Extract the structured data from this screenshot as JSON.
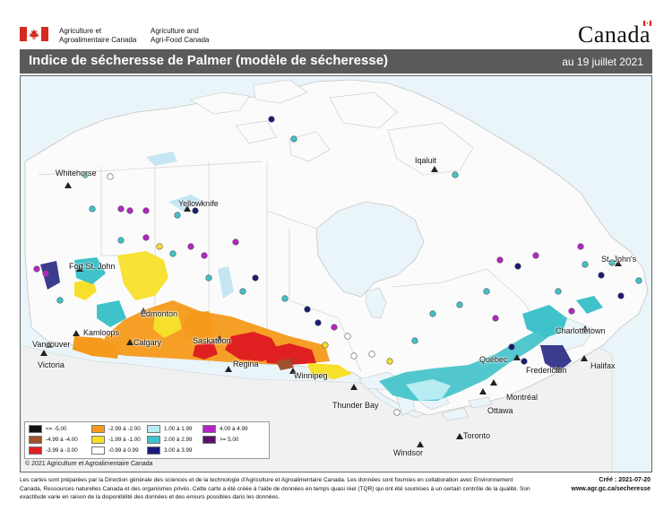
{
  "header": {
    "dept_fr": [
      "Agriculture et",
      "Agroalimentaire Canada"
    ],
    "dept_en": [
      "Agriculture and",
      "Agri-Food Canada"
    ],
    "wordmark": "Canada"
  },
  "title_bar": {
    "title": "Indice de sécheresse de Palmer (modèle de sécheresse)",
    "date": "au 19 juillet 2021"
  },
  "colors": {
    "land": "#fbfbfb",
    "water": "#eaf5fa",
    "us_land": "#f1f1f1",
    "title_bar": "#5a5a5a"
  },
  "places": [
    {
      "name": "Whitehorse",
      "id": "whitehorse"
    },
    {
      "name": "Yellowknife",
      "id": "yellowknife"
    },
    {
      "name": "Iqaluit",
      "id": "iqaluit"
    },
    {
      "name": "Fort St. John",
      "id": "fort-st-john"
    },
    {
      "name": "Edmonton",
      "id": "edmonton"
    },
    {
      "name": "Kamloops",
      "id": "kamloops"
    },
    {
      "name": "Calgary",
      "id": "calgary"
    },
    {
      "name": "Saskatoon",
      "id": "saskatoon"
    },
    {
      "name": "Regina",
      "id": "regina"
    },
    {
      "name": "Winnipeg",
      "id": "winnipeg"
    },
    {
      "name": "Vancouver",
      "id": "vancouver"
    },
    {
      "name": "Victoria",
      "id": "victoria"
    },
    {
      "name": "Thunder Bay",
      "id": "thunder-bay"
    },
    {
      "name": "St. John's",
      "id": "st-johns"
    },
    {
      "name": "Charlottetown",
      "id": "charlottetown"
    },
    {
      "name": "Québec",
      "id": "quebec"
    },
    {
      "name": "Fredericton",
      "id": "fredericton"
    },
    {
      "name": "Halifax",
      "id": "halifax"
    },
    {
      "name": "Montréal",
      "id": "montreal"
    },
    {
      "name": "Ottawa",
      "id": "ottawa"
    },
    {
      "name": "Toronto",
      "id": "toronto"
    },
    {
      "name": "Windsor",
      "id": "windsor"
    }
  ],
  "legend": [
    {
      "label": "<= -5.00",
      "color": "#111111"
    },
    {
      "label": "-4.99 à -4.00",
      "color": "#a0522d"
    },
    {
      "label": "-3.99 à -3.00",
      "color": "#e02020"
    },
    {
      "label": "-2.99 à -2.00",
      "color": "#f59a1b"
    },
    {
      "label": "-1.99 à -1.00",
      "color": "#f7e02a"
    },
    {
      "label": "-0.99 à 0.99",
      "color": "#ffffff"
    },
    {
      "label": "1.00 à 1.99",
      "color": "#b6ecf2"
    },
    {
      "label": "2.00 à 2.99",
      "color": "#3fc2c9"
    },
    {
      "label": "3.00 à 3.99",
      "color": "#1a1a7a"
    },
    {
      "label": "4.00 à 4.99",
      "color": "#b424c4"
    },
    {
      "label": ">= 5.00",
      "color": "#5a1068"
    }
  ],
  "copyright": "© 2021 Agriculture et Agroalimentaire Canada",
  "footnote": "Les cartes sont préparées par la Direction générale des sciences et de la technologie d'Agriculture et Agroalimentaire Canada. Les données sont fournies en collaboration avec Environnement Canada, Ressources naturelles Canada et des organismes privés. Cette carte a été créée à l'aide de données en temps quasi réel (TQR) qui ont été soumises à un certain contrôle de la qualité. Son exactitude varie en raison de la disponibilité des données et des erreurs possibles dans les données.",
  "created": "Créé : 2021-07-20",
  "url": "www.agr.gc.ca/secheresse"
}
